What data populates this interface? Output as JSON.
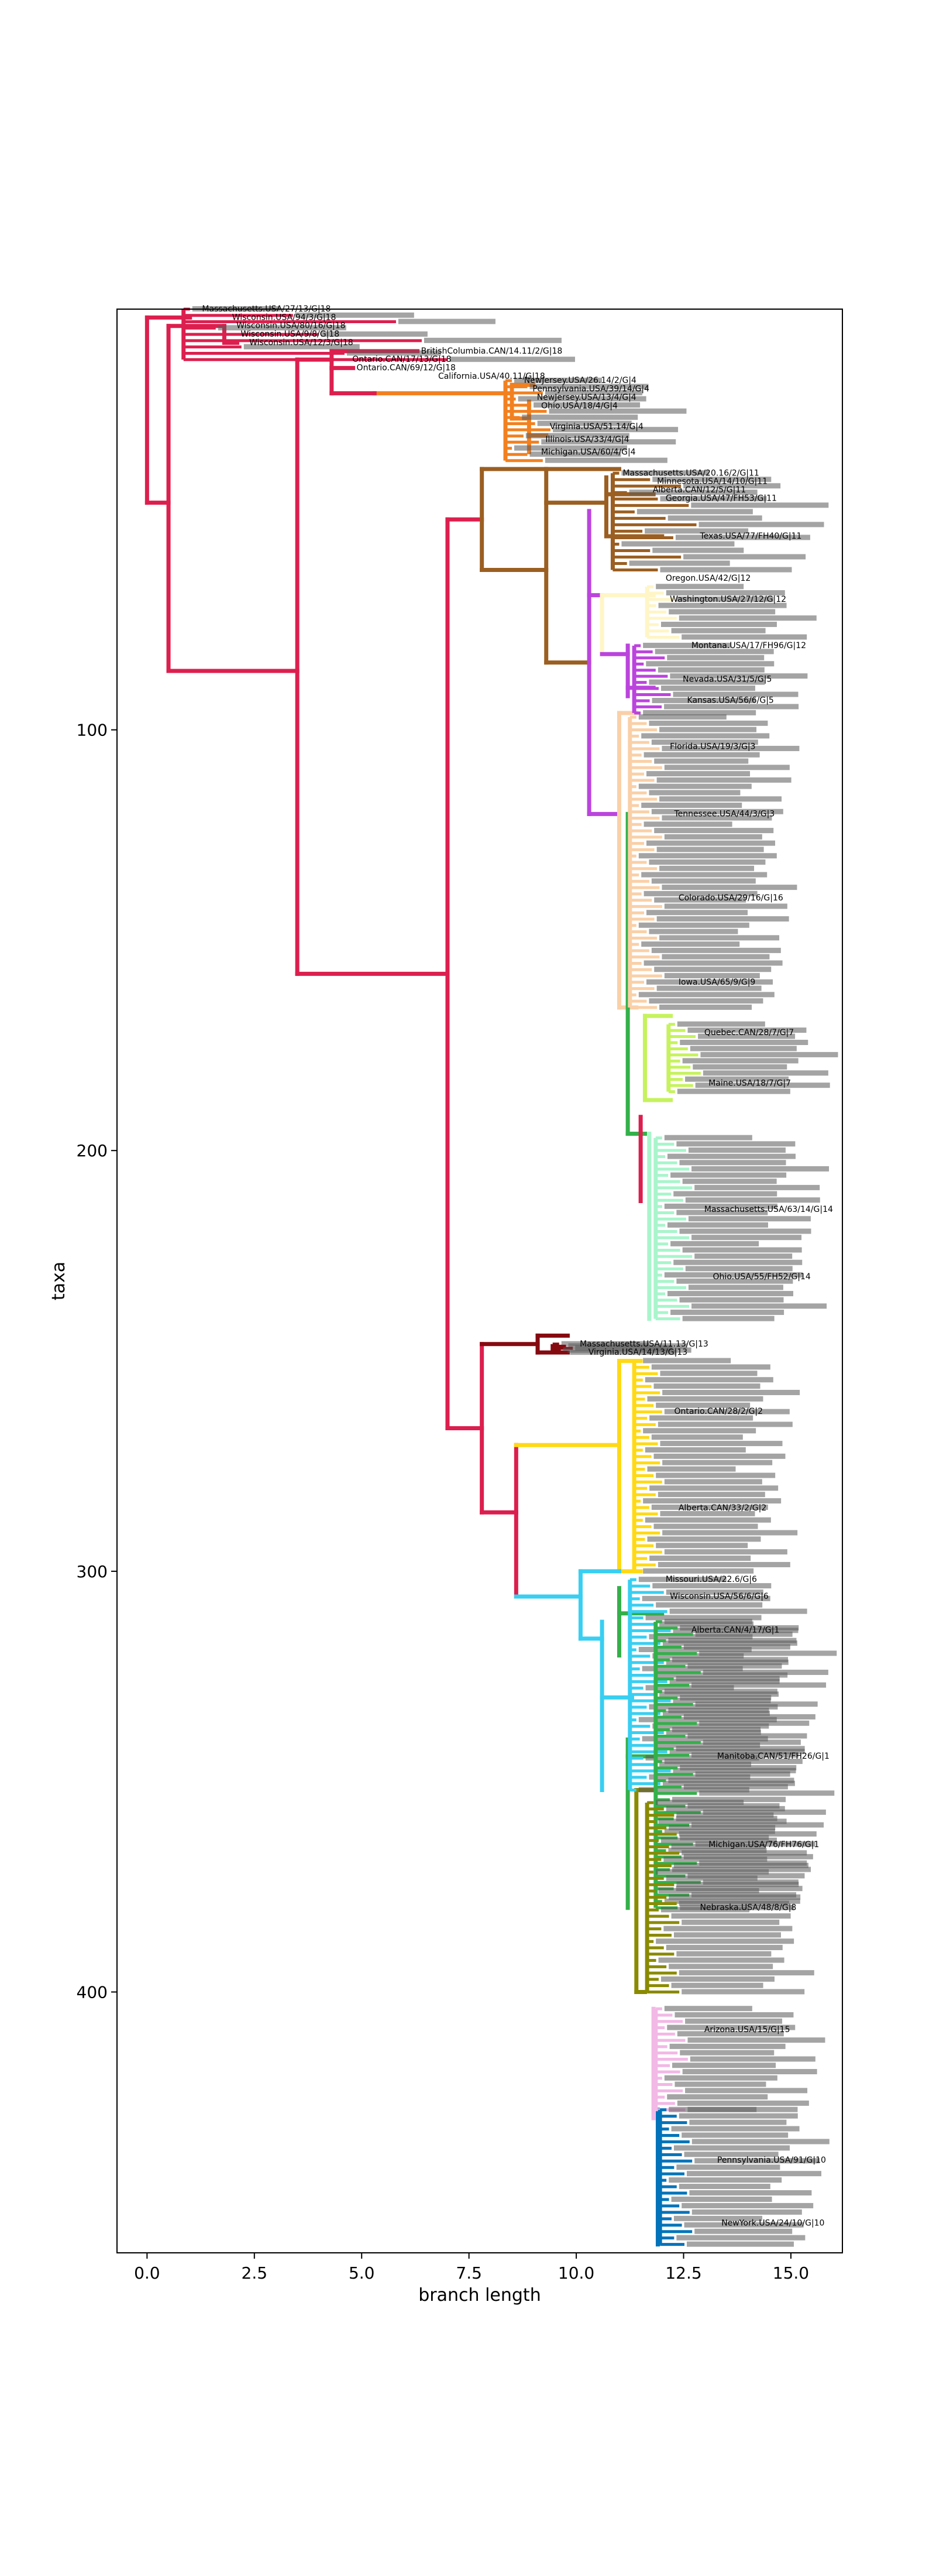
{
  "chart_data": {
    "type": "phylogenetic-tree",
    "xlabel": "branch length",
    "ylabel": "taxa",
    "xlim": [
      -0.7,
      16.2
    ],
    "ylim": [
      462,
      0
    ],
    "x_ticks": [
      0.0,
      2.5,
      5.0,
      7.5,
      10.0,
      12.5,
      15.0
    ],
    "x_tick_labels": [
      "0.0",
      "2.5",
      "5.0",
      "7.5",
      "10.0",
      "12.5",
      "15.0"
    ],
    "y_ticks": [
      100,
      200,
      300,
      400
    ],
    "y_tick_labels": [
      "100",
      "200",
      "300",
      "400"
    ],
    "grid": false,
    "legend": "none",
    "clade_colors": {
      "G18": "#dc1f4e",
      "G4": "#f2801f",
      "G11": "#9b5f22",
      "G12": "#fff5c6",
      "G5": "#bb44dd",
      "G3": "#fad0a8",
      "G16": "#4069d4",
      "G9": "#33b04a",
      "G7": "#c6f25d",
      "G14": "#a8f5cc",
      "G13": "#850a10",
      "G2": "#ffd915",
      "G6": "#38cff2",
      "G1": "#33b04a",
      "G8": "#8a8a00",
      "G15": "#f2b8e6",
      "G10": "#0073ba"
    },
    "clade_tip_ranges": [
      {
        "clade": "G18",
        "y": [
          0,
          12
        ],
        "x": [
          1.0,
          7.0
        ]
      },
      {
        "clade": "G4",
        "y": [
          17,
          36
        ],
        "x": [
          8.5,
          9.4
        ]
      },
      {
        "clade": "G11",
        "y": [
          39,
          62
        ],
        "x": [
          11.0,
          12.8
        ]
      },
      {
        "clade": "G12",
        "y": [
          66,
          78
        ],
        "x": [
          11.8,
          12.4
        ]
      },
      {
        "clade": "G5",
        "y": [
          80,
          96
        ],
        "x": [
          11.5,
          12.2
        ]
      },
      {
        "clade": "G3",
        "y": [
          97,
          166
        ],
        "x": [
          11.4,
          12.0
        ]
      },
      {
        "clade": "G7",
        "y": [
          170,
          186
        ],
        "x": [
          12.3,
          12.9
        ]
      },
      {
        "clade": "G14",
        "y": [
          197,
          240
        ],
        "x": [
          12.0,
          12.7
        ]
      },
      {
        "clade": "G13",
        "y": [
          246,
          248
        ],
        "x": [
          9.6,
          10.0
        ]
      },
      {
        "clade": "G2",
        "y": [
          250,
          300
        ],
        "x": [
          11.5,
          12.0
        ]
      },
      {
        "clade": "G6",
        "y": [
          302,
          352
        ],
        "x": [
          11.4,
          12.2
        ]
      },
      {
        "clade": "G1",
        "y": [
          312,
          380
        ],
        "x": [
          12.0,
          12.9
        ]
      },
      {
        "clade": "G8",
        "y": [
          355,
          400
        ],
        "x": [
          11.8,
          12.4
        ]
      },
      {
        "clade": "G15",
        "y": [
          404,
          428
        ],
        "x": [
          12.0,
          12.6
        ]
      },
      {
        "clade": "G10",
        "y": [
          428,
          460
        ],
        "x": [
          12.1,
          12.7
        ]
      }
    ],
    "leaf_labels": [
      {
        "text": "Massachusetts.USA/27/13/G|18",
        "x": 1.2,
        "y": 0,
        "clade": "G18"
      },
      {
        "text": "Wisconsin.USA/94/3/G|18",
        "x": 1.9,
        "y": 2,
        "clade": "G18"
      },
      {
        "text": "Wisconsin.USA/80/16/G|18",
        "x": 2.0,
        "y": 4,
        "clade": "G18"
      },
      {
        "text": "Wisconsin.USA/9/8/G|18",
        "x": 2.1,
        "y": 6,
        "clade": "G18"
      },
      {
        "text": "Wisconsin.USA/12/3/G|18",
        "x": 2.3,
        "y": 8,
        "clade": "G18"
      },
      {
        "text": "BritishColumbia.CAN/14.11/2/G|18",
        "x": 6.3,
        "y": 10,
        "clade": "G18"
      },
      {
        "text": "Ontario.CAN/17/13/G|18",
        "x": 4.7,
        "y": 12,
        "clade": "G18"
      },
      {
        "text": "Ontario.CAN/69/12/G|18",
        "x": 4.8,
        "y": 14,
        "clade": "G18"
      },
      {
        "text": "California.USA/40.11/G|18",
        "x": 6.7,
        "y": 16,
        "clade": "G18"
      },
      {
        "text": "NewJersey.USA/26.14/2/G|4",
        "x": 8.7,
        "y": 17,
        "clade": "G4"
      },
      {
        "text": "Pennsylvania.USA/39/14/G|4",
        "x": 8.9,
        "y": 19,
        "clade": "G4"
      },
      {
        "text": "NewJersey.USA/13/4/G|4",
        "x": 9.0,
        "y": 21,
        "clade": "G4"
      },
      {
        "text": "Ohio.USA/18/4/G|4",
        "x": 9.1,
        "y": 23,
        "clade": "G4"
      },
      {
        "text": "Virginia.USA/51.14/G|4",
        "x": 9.3,
        "y": 28,
        "clade": "G4"
      },
      {
        "text": "Illinois.USA/33/4/G|4",
        "x": 9.2,
        "y": 31,
        "clade": "G4"
      },
      {
        "text": "Michigan.USA/60/4/G|4",
        "x": 9.1,
        "y": 34,
        "clade": "G4"
      },
      {
        "text": "Massachusetts.USA/20.16/2/G|11",
        "x": 11.0,
        "y": 39,
        "clade": "G11"
      },
      {
        "text": "Minnesota.USA/14/10/G|11",
        "x": 11.8,
        "y": 41,
        "clade": "G11"
      },
      {
        "text": "Alberta.CAN/12/5/G|11",
        "x": 11.7,
        "y": 43,
        "clade": "G11"
      },
      {
        "text": "Georgia.USA/47/FH53/G|11",
        "x": 12.0,
        "y": 45,
        "clade": "G11"
      },
      {
        "text": "Texas.USA/77/FH40/G|11",
        "x": 12.8,
        "y": 54,
        "clade": "G11"
      },
      {
        "text": "Oregon.USA/42/G|12",
        "x": 12.0,
        "y": 64,
        "clade": "G12"
      },
      {
        "text": "Washington.USA/27/12/G|12",
        "x": 12.1,
        "y": 69,
        "clade": "G12"
      },
      {
        "text": "Montana.USA/17/FH96/G|12",
        "x": 12.6,
        "y": 80,
        "clade": "G12"
      },
      {
        "text": "Nevada.USA/31/5/G|5",
        "x": 12.4,
        "y": 88,
        "clade": "G5"
      },
      {
        "text": "Kansas.USA/56/6/G|5",
        "x": 12.5,
        "y": 93,
        "clade": "G5"
      },
      {
        "text": "Florida.USA/19/3/G|3",
        "x": 12.1,
        "y": 104,
        "clade": "G3"
      },
      {
        "text": "Tennessee.USA/44/3/G|3",
        "x": 12.2,
        "y": 120,
        "clade": "G3"
      },
      {
        "text": "Colorado.USA/29/16/G|16",
        "x": 12.3,
        "y": 140,
        "clade": "G16"
      },
      {
        "text": "Iowa.USA/65/9/G|9",
        "x": 12.3,
        "y": 160,
        "clade": "G9"
      },
      {
        "text": "Quebec.CAN/28/7/G|7",
        "x": 12.9,
        "y": 172,
        "clade": "G7"
      },
      {
        "text": "Maine.USA/18/7/G|7",
        "x": 13.0,
        "y": 184,
        "clade": "G7"
      },
      {
        "text": "Massachusetts.USA/63/14/G|14",
        "x": 12.9,
        "y": 214,
        "clade": "G14"
      },
      {
        "text": "Ohio.USA/55/FH52/G|14",
        "x": 13.1,
        "y": 230,
        "clade": "G14"
      },
      {
        "text": "Massachusetts.USA/11.13/G|13",
        "x": 10.0,
        "y": 246,
        "clade": "G13"
      },
      {
        "text": "Virginia.USA/14/13/G|13",
        "x": 10.2,
        "y": 248,
        "clade": "G13"
      },
      {
        "text": "Ontario.CAN/28/2/G|2",
        "x": 12.2,
        "y": 262,
        "clade": "G2"
      },
      {
        "text": "Alberta.CAN/33/2/G|2",
        "x": 12.3,
        "y": 285,
        "clade": "G2"
      },
      {
        "text": "Missouri.USA/22.6/G|6",
        "x": 12.0,
        "y": 302,
        "clade": "G6"
      },
      {
        "text": "Wisconsin.USA/56/6/G|6",
        "x": 12.1,
        "y": 306,
        "clade": "G6"
      },
      {
        "text": "Alberta.CAN/4/17/G|1",
        "x": 12.6,
        "y": 314,
        "clade": "G1"
      },
      {
        "text": "Manitoba.CAN/51/FH26/G|1",
        "x": 13.2,
        "y": 344,
        "clade": "G1"
      },
      {
        "text": "Michigan.USA/76/FH76/G|1",
        "x": 13.0,
        "y": 365,
        "clade": "G1"
      },
      {
        "text": "Nebraska.USA/48/8/G|8",
        "x": 12.8,
        "y": 380,
        "clade": "G8"
      },
      {
        "text": "Arizona.USA/15/G|15",
        "x": 12.9,
        "y": 409,
        "clade": "G15"
      },
      {
        "text": "Pennsylvania.USA/91/G|10",
        "x": 13.2,
        "y": 440,
        "clade": "G10"
      },
      {
        "text": "NewYork.USA/24/10/G|10",
        "x": 13.3,
        "y": 455,
        "clade": "G10"
      }
    ]
  }
}
